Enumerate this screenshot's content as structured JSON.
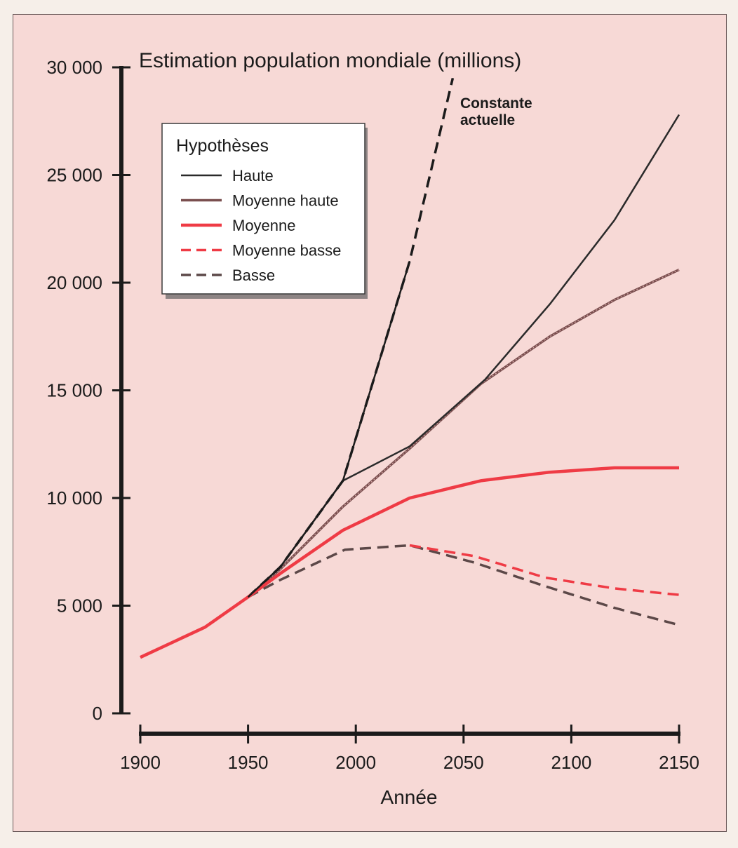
{
  "chart_data": {
    "type": "line",
    "title": "Estimation population mondiale (millions)",
    "xlabel": "Année",
    "ylabel": "",
    "xlim": [
      1900,
      2150
    ],
    "ylim": [
      0,
      30000
    ],
    "x_ticks": [
      1900,
      1950,
      2000,
      2050,
      2100,
      2150
    ],
    "x_tick_labels": [
      "1900",
      "1950",
      "2000",
      "2050",
      "2100",
      "2150"
    ],
    "y_ticks": [
      0,
      5000,
      10000,
      15000,
      20000,
      25000,
      30000
    ],
    "y_tick_labels": [
      "0",
      "5 000",
      "10 000",
      "15 000",
      "20 000",
      "25 000",
      "30 000"
    ],
    "grid": false,
    "legend": {
      "title": "Hypothèses",
      "placement": "top-left"
    },
    "series": [
      {
        "name": "Haute",
        "style": "solid",
        "color": "#2a2a2a",
        "x": [
          1950,
          1965,
          1994,
          2025,
          2060,
          2090,
          2120,
          2150
        ],
        "y": [
          5400,
          6800,
          10800,
          12400,
          15500,
          19000,
          22900,
          27800
        ]
      },
      {
        "name": "Moyenne haute",
        "style": "solid-dotted",
        "color": "#7a4f4f",
        "x": [
          1950,
          1965,
          1994,
          2025,
          2058,
          2090,
          2120,
          2150
        ],
        "y": [
          5400,
          6700,
          9600,
          12300,
          15300,
          17500,
          19200,
          20600
        ]
      },
      {
        "name": "Moyenne",
        "style": "solid",
        "color": "#ef3b45",
        "x": [
          1900,
          1930,
          1950,
          1965,
          1994,
          2025,
          2058,
          2090,
          2120,
          2150
        ],
        "y": [
          2600,
          4000,
          5400,
          6500,
          8500,
          10000,
          10800,
          11200,
          11400,
          11400
        ]
      },
      {
        "name": "Moyenne basse",
        "style": "dashed",
        "color": "#ef3b45",
        "x": [
          2025,
          2055,
          2088,
          2120,
          2150
        ],
        "y": [
          7800,
          7300,
          6300,
          5800,
          5500
        ]
      },
      {
        "name": "Basse",
        "style": "dashed",
        "color": "#5c4848",
        "x": [
          1950,
          1965,
          1995,
          2025,
          2055,
          2088,
          2120,
          2150
        ],
        "y": [
          5400,
          6200,
          7600,
          7800,
          7000,
          5900,
          4900,
          4100
        ]
      },
      {
        "name": "",
        "style": "dashed",
        "color": "#1b1b1b",
        "x": [
          1950,
          1965,
          1994,
          2025,
          2045
        ],
        "y": [
          5400,
          6800,
          10800,
          21000,
          29500
        ]
      }
    ],
    "annotations": [
      {
        "text_lines": [
          "Constante",
          "actuelle"
        ]
      }
    ],
    "colors": {
      "axis": "#1b1b1b",
      "background": "#f7d9d6"
    }
  }
}
